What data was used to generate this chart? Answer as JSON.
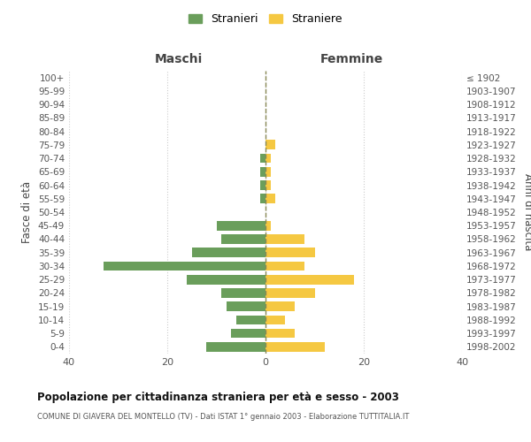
{
  "age_groups": [
    "100+",
    "95-99",
    "90-94",
    "85-89",
    "80-84",
    "75-79",
    "70-74",
    "65-69",
    "60-64",
    "55-59",
    "50-54",
    "45-49",
    "40-44",
    "35-39",
    "30-34",
    "25-29",
    "20-24",
    "15-19",
    "10-14",
    "5-9",
    "0-4"
  ],
  "birth_years": [
    "≤ 1902",
    "1903-1907",
    "1908-1912",
    "1913-1917",
    "1918-1922",
    "1923-1927",
    "1928-1932",
    "1933-1937",
    "1938-1942",
    "1943-1947",
    "1948-1952",
    "1953-1957",
    "1958-1962",
    "1963-1967",
    "1968-1972",
    "1973-1977",
    "1978-1982",
    "1983-1987",
    "1988-1992",
    "1993-1997",
    "1998-2002"
  ],
  "maschi": [
    0,
    0,
    0,
    0,
    0,
    0,
    1,
    1,
    1,
    1,
    0,
    10,
    9,
    15,
    33,
    16,
    9,
    8,
    6,
    7,
    12
  ],
  "femmine": [
    0,
    0,
    0,
    0,
    0,
    2,
    1,
    1,
    1,
    2,
    0,
    1,
    8,
    10,
    8,
    18,
    10,
    6,
    4,
    6,
    12
  ],
  "maschi_color": "#6a9e5b",
  "femmine_color": "#f5c842",
  "background_color": "#ffffff",
  "grid_color": "#cccccc",
  "center_line_color": "#888855",
  "title": "Popolazione per cittadinanza straniera per età e sesso - 2003",
  "subtitle": "COMUNE DI GIAVERA DEL MONTELLO (TV) - Dati ISTAT 1° gennaio 2003 - Elaborazione TUTTITALIA.IT",
  "xlabel_left": "Maschi",
  "xlabel_right": "Femmine",
  "ylabel_left": "Fasce di età",
  "ylabel_right": "Anni di nascita",
  "legend_maschi": "Stranieri",
  "legend_femmine": "Straniere",
  "xlim": 40
}
